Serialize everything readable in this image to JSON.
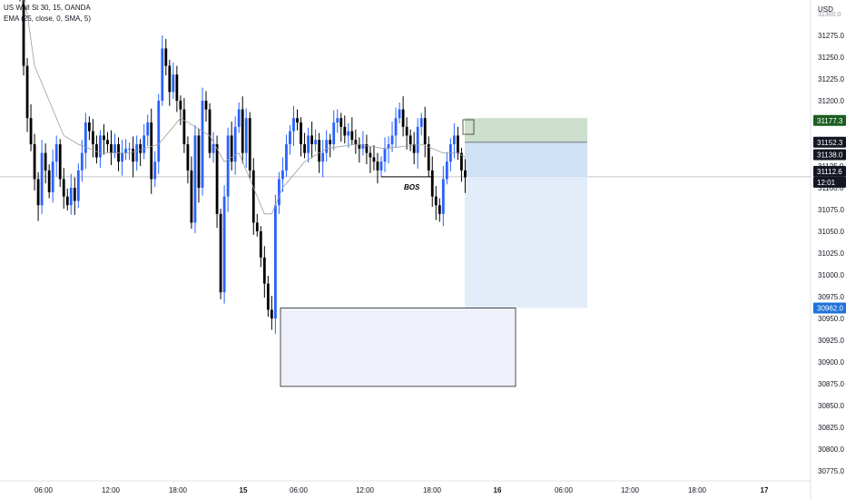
{
  "header": {
    "symbol_line": "US Wall St 30, 15, OANDA",
    "indicator_line": "EMA (25, close, 0, SMA, 5)"
  },
  "colors": {
    "up": "#2962ff",
    "down": "#000000",
    "ema": "#9e9e9e",
    "target_zone": "#c8dcc8",
    "stop_zone": "#cfe1f5",
    "demand_box": "#eef1fb",
    "label_green": "#1b5e20",
    "label_blue": "#1e73d8",
    "label_black": "#131722",
    "grid": "#f0f3fa",
    "hline": "#b2b5be"
  },
  "chart_data": {
    "type": "candlestick",
    "currency_label": "USD",
    "y_ticks": [
      31275.0,
      31250.0,
      31225.0,
      31200.0,
      31175.0,
      31150.0,
      31125.0,
      31100.0,
      31075.0,
      31050.0,
      31025.0,
      31000.0,
      30975.0,
      30950.0,
      30925.0,
      30900.0,
      30875.0,
      30850.0,
      30825.0,
      30800.0,
      30775.0
    ],
    "y_top_tick": "31300.0",
    "x_ticks": [
      "06:00",
      "12:00",
      "18:00",
      "15",
      "06:00",
      "12:00",
      "18:00",
      "16",
      "06:00",
      "12:00",
      "18:00",
      "17"
    ],
    "price_labels": [
      {
        "value": "31177.3",
        "kind": "green"
      },
      {
        "value": "31152.3",
        "kind": "black"
      },
      {
        "value": "31138.0",
        "kind": "black"
      },
      {
        "value": "31112.6",
        "kind": "black"
      },
      {
        "value": "12:01",
        "kind": "black"
      },
      {
        "value": "30962.0",
        "kind": "blue"
      }
    ],
    "annotation": "BOS",
    "bos_level": 31112.6,
    "closes": [
      31320,
      31240,
      31180,
      31150,
      31110,
      31080,
      31140,
      31120,
      31095,
      31130,
      31150,
      31110,
      31090,
      31080,
      31100,
      31085,
      31120,
      31140,
      31175,
      31165,
      31150,
      31135,
      31160,
      31155,
      31150,
      31140,
      31150,
      31130,
      31140,
      31145,
      31145,
      31130,
      31150,
      31140,
      31160,
      31175,
      31110,
      31130,
      31200,
      31260,
      31240,
      31210,
      31230,
      31200,
      31190,
      31150,
      31120,
      31060,
      31160,
      31100,
      31200,
      31190,
      31140,
      31150,
      31070,
      30980,
      31090,
      31160,
      31130,
      31170,
      31190,
      31140,
      31180,
      31120,
      31060,
      31050,
      31020,
      30990,
      30960,
      30950,
      31080,
      31110,
      31120,
      31150,
      31165,
      31180,
      31175,
      31150,
      31140,
      31160,
      31150,
      31155,
      31130,
      31140,
      31155,
      31150,
      31175,
      31180,
      31170,
      31160,
      31165,
      31155,
      31150,
      31145,
      31150,
      31140,
      31135,
      31130,
      31120,
      31130,
      31145,
      31150,
      31160,
      31180,
      31190,
      31170,
      31160,
      31150,
      31140,
      31170,
      31180,
      31150,
      31120,
      31090,
      31080,
      31070,
      31110,
      31130,
      31150,
      31160,
      31140,
      31120,
      31112
    ],
    "ema_points": [
      [
        0,
        31330
      ],
      [
        2,
        31300
      ],
      [
        4,
        31240
      ],
      [
        8,
        31200
      ],
      [
        12,
        31160
      ],
      [
        16,
        31150
      ],
      [
        22,
        31140
      ],
      [
        30,
        31140
      ],
      [
        38,
        31150
      ],
      [
        44,
        31180
      ],
      [
        48,
        31170
      ],
      [
        52,
        31160
      ],
      [
        56,
        31130
      ],
      [
        60,
        31140
      ],
      [
        64,
        31100
      ],
      [
        67,
        31070
      ],
      [
        69,
        31070
      ],
      [
        72,
        31100
      ],
      [
        78,
        31130
      ],
      [
        84,
        31145
      ],
      [
        92,
        31150
      ],
      [
        100,
        31145
      ],
      [
        110,
        31150
      ],
      [
        116,
        31140
      ],
      [
        120,
        31140
      ],
      [
        122,
        31135
      ]
    ],
    "target_zone": {
      "top": 31180,
      "bottom": 31152.3
    },
    "stop_zone": {
      "top": 31152.3,
      "bottom": 30962
    },
    "demand_box": {
      "top": 30962,
      "bottom": 30872
    }
  }
}
